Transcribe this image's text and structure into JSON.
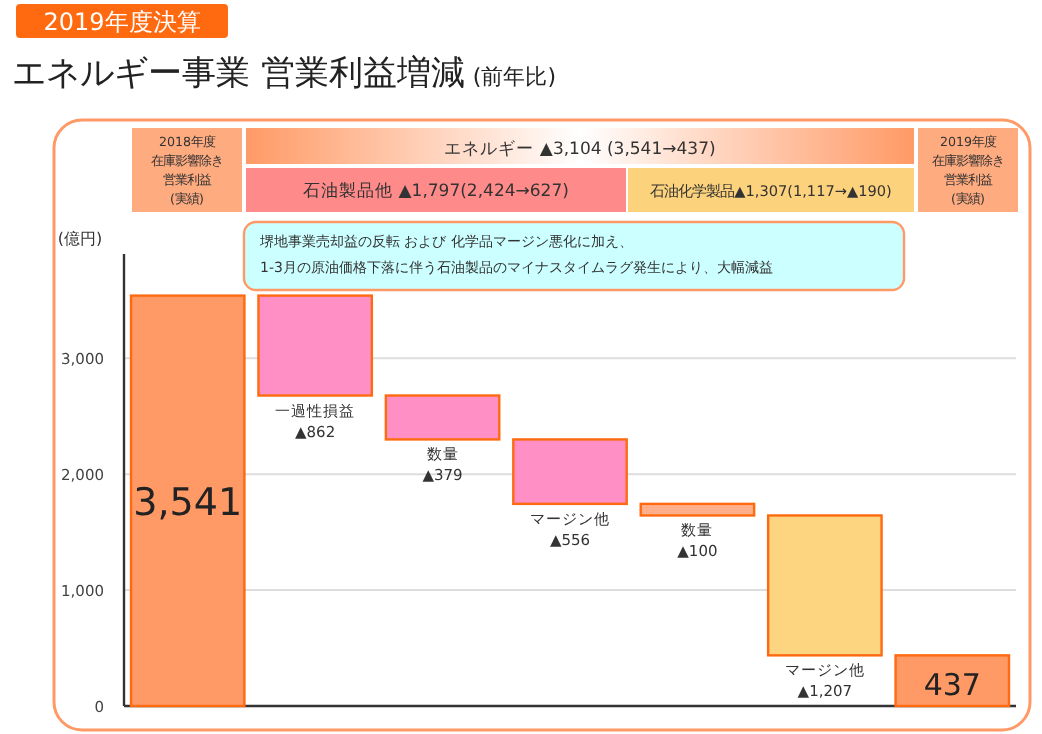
{
  "chart_data": {
    "type": "bar",
    "title": "エネルギー事業 営業利益増減",
    "subtitle": "(前年比)",
    "ylabel": "(億円)",
    "categories": [
      null,
      "一過性損益",
      "数量",
      "マージン他",
      "数量",
      "マージン他",
      null
    ],
    "values": [
      3541,
      -862,
      -379,
      -556,
      -100,
      -1207,
      437
    ],
    "base": [
      0,
      3541,
      2679,
      2300,
      1744,
      1644,
      0
    ],
    "colors": [
      "#ff9966",
      "#ff8fc4",
      "#ff8fc4",
      "#ff8fc4",
      "#ffb08a",
      "#fdd580",
      "#ff9966"
    ],
    "value_labels": [
      "3,541",
      "▲862",
      "▲379",
      "▲556",
      "▲100",
      "▲1,207",
      "437"
    ],
    "ylim": [
      0,
      3900
    ],
    "yticks": [
      0,
      {
        "value": 1000,
        "label": "1,000"
      },
      {
        "value": 2000,
        "label": "2,000"
      },
      {
        "value": 3000,
        "label": "3,000"
      }
    ],
    "grid": "y",
    "annotations": [
      "2019年度決算",
      "2018年度",
      "在庫影響除き",
      "営業利益",
      "(実績)",
      "エネルギー ▲3,104 (3,541→437)",
      "石油製品他 ▲1,797(2,424→627)",
      "石油化学製品▲1,307(1,117→▲190)",
      "2019年度",
      "在庫影響除き",
      "営業利益",
      "(実績)",
      "堺地事業売却益の反転 および 化学品マージン悪化に加え、",
      "1-3月の原油価格下落に伴う石油製品のマイナスタイムラグ発生により、大幅減益"
    ]
  }
}
